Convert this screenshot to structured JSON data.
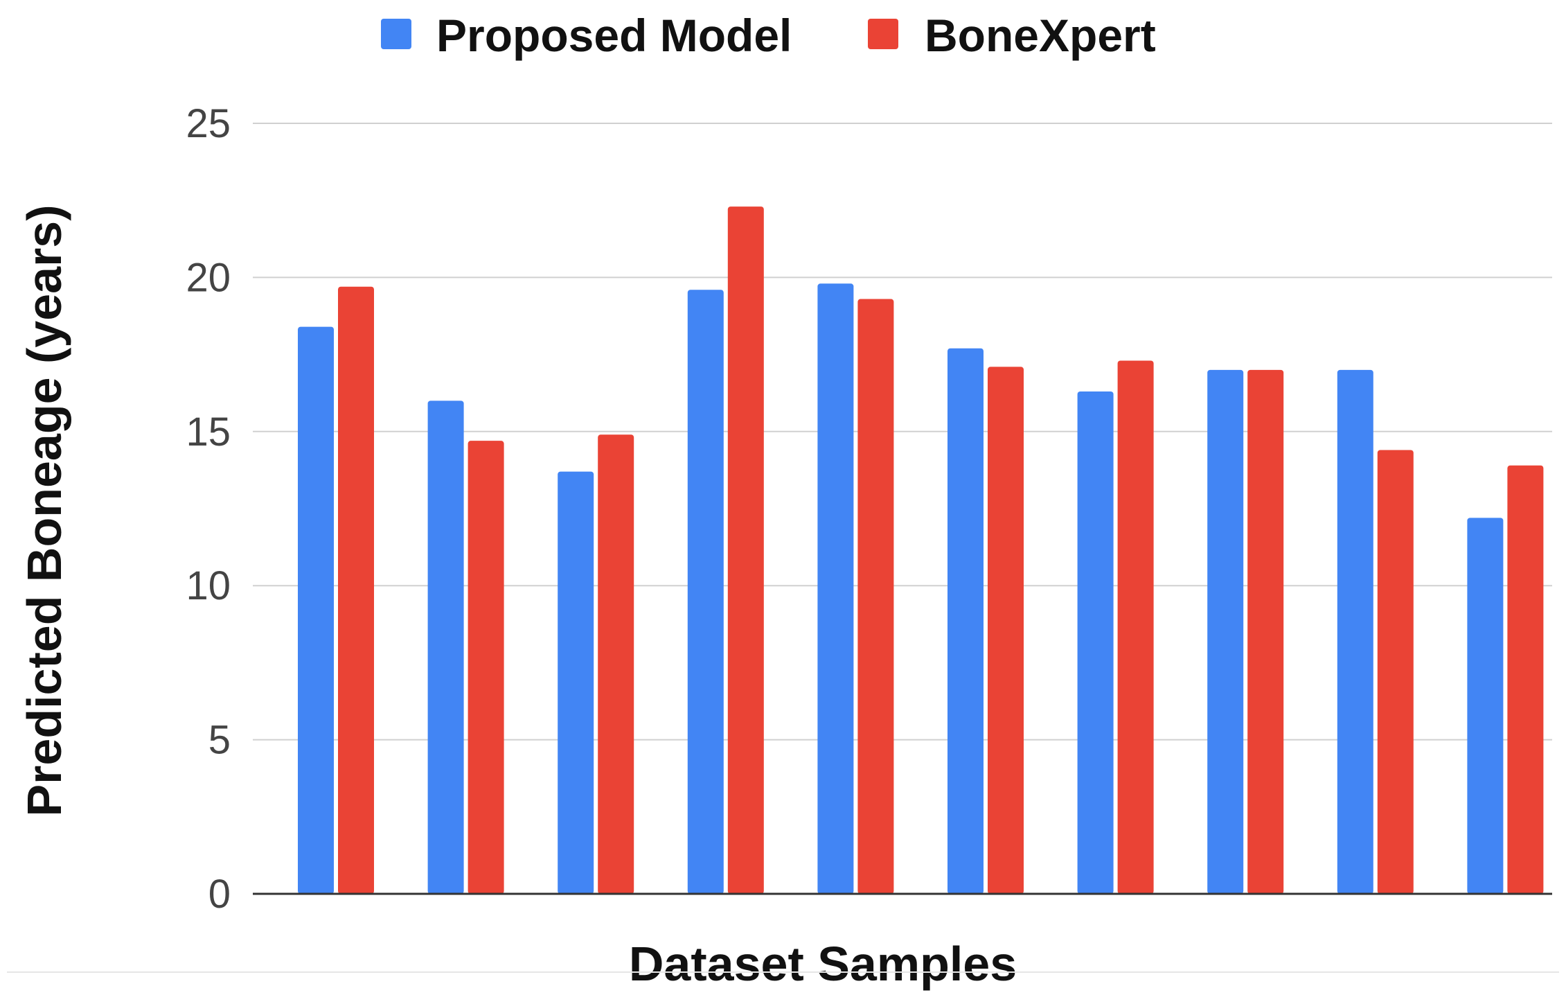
{
  "chart_data": {
    "type": "bar",
    "title": "",
    "xlabel": "Dataset Samples",
    "ylabel": "Predicted Boneage (years)",
    "ylim": [
      0,
      25
    ],
    "yticks": [
      0,
      5,
      10,
      15,
      20,
      25
    ],
    "grid": true,
    "legend_position": "top",
    "categories": [
      "",
      "",
      "",
      "",
      "",
      "",
      "",
      "",
      "",
      ""
    ],
    "series": [
      {
        "name": "Proposed Model",
        "color": "#4285F4",
        "values": [
          18.4,
          16.0,
          13.7,
          19.6,
          19.8,
          17.7,
          16.3,
          17.0,
          17.0,
          12.2
        ]
      },
      {
        "name": "BoneXpert",
        "color": "#EA4335",
        "values": [
          19.7,
          14.7,
          14.9,
          22.3,
          19.3,
          17.1,
          17.3,
          17.0,
          14.4,
          13.9
        ]
      }
    ]
  }
}
